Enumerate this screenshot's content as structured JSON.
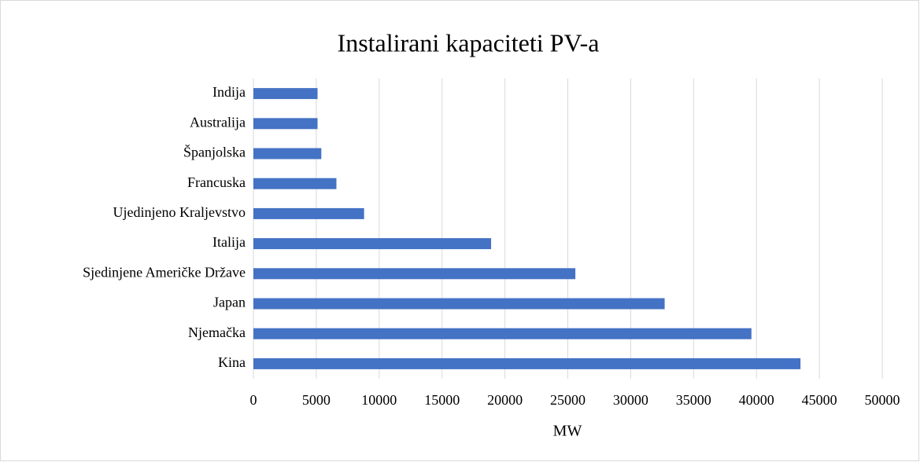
{
  "chart_data": {
    "type": "bar",
    "orientation": "horizontal",
    "title": "Instalirani kapaciteti PV-a",
    "categories": [
      "Kina",
      "Njemačka",
      "Japan",
      "Sjedinjene Američke Države",
      "Italija",
      "Ujedinjeno Kraljevstvo",
      "Francuska",
      "Španjolska",
      "Australija",
      "Indija"
    ],
    "values": [
      43500,
      39600,
      32700,
      25600,
      18900,
      8800,
      6600,
      5400,
      5100,
      5100
    ],
    "color": "#4472c4",
    "x_label": "MW",
    "xlim": [
      0,
      50000
    ],
    "xticks": [
      0,
      5000,
      10000,
      15000,
      20000,
      25000,
      30000,
      35000,
      40000,
      45000,
      50000
    ],
    "grid": true
  }
}
